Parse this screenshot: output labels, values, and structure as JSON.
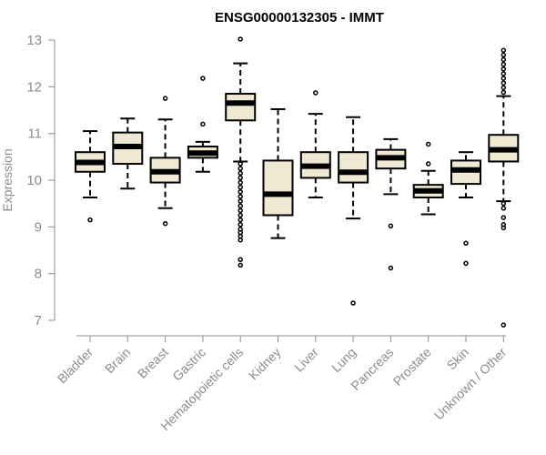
{
  "chart_data": {
    "type": "boxplot",
    "title": "ENSG00000132305 - IMMT",
    "xlabel": "",
    "ylabel": "Expression",
    "ylim": [
      7,
      13
    ],
    "yticks": [
      "7",
      "8",
      "9",
      "10",
      "11",
      "12",
      "13"
    ],
    "box_color": "#efe8d2",
    "categories": [
      "Bladder",
      "Brain",
      "Breast",
      "Gastric",
      "Hematopoietic cells",
      "Kidney",
      "Liver",
      "Lung",
      "Pancreas",
      "Prostate",
      "Skin",
      "Unknown / Other"
    ],
    "series": [
      {
        "name": "Bladder",
        "whisker_low": 9.63,
        "q1": 10.18,
        "median": 10.38,
        "q3": 10.6,
        "whisker_high": 11.05,
        "outliers": [
          9.15
        ]
      },
      {
        "name": "Brain",
        "whisker_low": 9.82,
        "q1": 10.35,
        "median": 10.72,
        "q3": 11.02,
        "whisker_high": 11.32,
        "outliers": []
      },
      {
        "name": "Breast",
        "whisker_low": 9.4,
        "q1": 9.95,
        "median": 10.18,
        "q3": 10.48,
        "whisker_high": 11.3,
        "outliers": [
          11.75,
          9.07
        ]
      },
      {
        "name": "Gastric",
        "whisker_low": 10.18,
        "q1": 10.48,
        "median": 10.58,
        "q3": 10.72,
        "whisker_high": 10.82,
        "outliers": [
          12.18,
          11.2
        ]
      },
      {
        "name": "Hematopoietic cells",
        "whisker_low": 10.4,
        "q1": 11.28,
        "median": 11.65,
        "q3": 11.85,
        "whisker_high": 12.5,
        "outliers": [
          13.02,
          10.35,
          10.25,
          10.15,
          10.05,
          9.95,
          9.85,
          9.75,
          9.65,
          9.55,
          9.45,
          9.35,
          9.25,
          9.15,
          9.05,
          8.95,
          8.88,
          8.8,
          8.72,
          8.3,
          8.18
        ]
      },
      {
        "name": "Kidney",
        "whisker_low": 8.76,
        "q1": 9.25,
        "median": 9.7,
        "q3": 10.42,
        "whisker_high": 11.52,
        "outliers": []
      },
      {
        "name": "Liver",
        "whisker_low": 9.63,
        "q1": 10.05,
        "median": 10.3,
        "q3": 10.6,
        "whisker_high": 11.42,
        "outliers": [
          11.87
        ]
      },
      {
        "name": "Lung",
        "whisker_low": 9.18,
        "q1": 9.95,
        "median": 10.17,
        "q3": 10.6,
        "whisker_high": 11.35,
        "outliers": [
          7.37
        ]
      },
      {
        "name": "Pancreas",
        "whisker_low": 9.7,
        "q1": 10.25,
        "median": 10.48,
        "q3": 10.65,
        "whisker_high": 10.88,
        "outliers": [
          9.02,
          8.12
        ]
      },
      {
        "name": "Prostate",
        "whisker_low": 9.27,
        "q1": 9.63,
        "median": 9.77,
        "q3": 9.9,
        "whisker_high": 10.2,
        "outliers": [
          10.77,
          10.35
        ]
      },
      {
        "name": "Skin",
        "whisker_low": 9.63,
        "q1": 9.92,
        "median": 10.22,
        "q3": 10.42,
        "whisker_high": 10.6,
        "outliers": [
          8.65,
          8.22
        ]
      },
      {
        "name": "Unknown / Other",
        "whisker_low": 9.55,
        "q1": 10.4,
        "median": 10.65,
        "q3": 10.97,
        "whisker_high": 11.8,
        "outliers": [
          12.78,
          12.68,
          12.58,
          12.48,
          12.38,
          12.28,
          12.18,
          12.08,
          11.98,
          11.88,
          9.5,
          9.4,
          9.2,
          9.05,
          8.98,
          6.9
        ]
      }
    ]
  }
}
